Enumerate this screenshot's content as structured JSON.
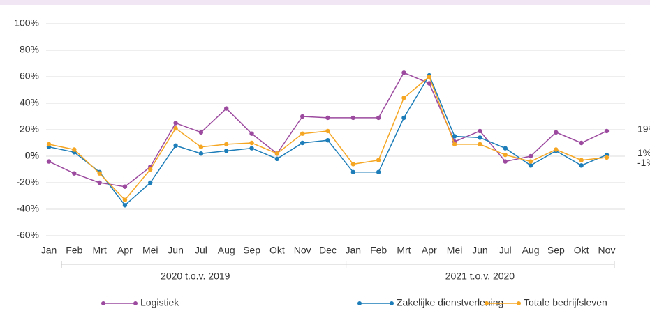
{
  "chart_data": {
    "type": "line",
    "categories": [
      "Jan",
      "Feb",
      "Mrt",
      "Apr",
      "Mei",
      "Jun",
      "Jul",
      "Aug",
      "Sep",
      "Okt",
      "Nov",
      "Dec",
      "Jan",
      "Feb",
      "Mrt",
      "Apr",
      "Mei",
      "Jun",
      "Jul",
      "Aug",
      "Sep",
      "Okt",
      "Nov"
    ],
    "groups": [
      {
        "label": "2020 t.o.v. 2019",
        "span": [
          0,
          11
        ]
      },
      {
        "label": "2021 t.o.v. 2020",
        "span": [
          12,
          22
        ]
      }
    ],
    "series": [
      {
        "name": "Logistiek",
        "color": "#9c4a9f",
        "end_label": "19%",
        "values": [
          -4,
          -13,
          -20,
          -23,
          -8,
          25,
          18,
          36,
          17,
          2,
          30,
          29,
          29,
          29,
          63,
          55,
          11,
          19,
          -4,
          0,
          18,
          10,
          19
        ]
      },
      {
        "name": "Zakelijke dienstverlening",
        "color": "#1c7db8",
        "end_label": "1%",
        "values": [
          7,
          3,
          -12,
          -37,
          -20,
          8,
          2,
          4,
          6,
          -2,
          10,
          12,
          -12,
          -12,
          29,
          61,
          15,
          14,
          6,
          -7,
          4,
          -7,
          1
        ]
      },
      {
        "name": "Totale bedrijfsleven",
        "color": "#f5a623",
        "end_label": "-1%",
        "values": [
          9,
          5,
          -13,
          -33,
          -10,
          21,
          7,
          9,
          10,
          2,
          17,
          19,
          -6,
          -3,
          44,
          60,
          9,
          9,
          1,
          -4,
          5,
          -3,
          -1
        ]
      }
    ],
    "ylim": [
      -60,
      100
    ],
    "yticks": [
      {
        "value": -60,
        "label": "-60%"
      },
      {
        "value": -40,
        "label": "-40%"
      },
      {
        "value": -20,
        "label": "-20%"
      },
      {
        "value": 0,
        "label": "0%"
      },
      {
        "value": 20,
        "label": "20%"
      },
      {
        "value": 40,
        "label": "40%"
      },
      {
        "value": 60,
        "label": "60%"
      },
      {
        "value": 80,
        "label": "80%"
      },
      {
        "value": 100,
        "label": "100%"
      }
    ],
    "grid": true,
    "legend": "bottom"
  }
}
